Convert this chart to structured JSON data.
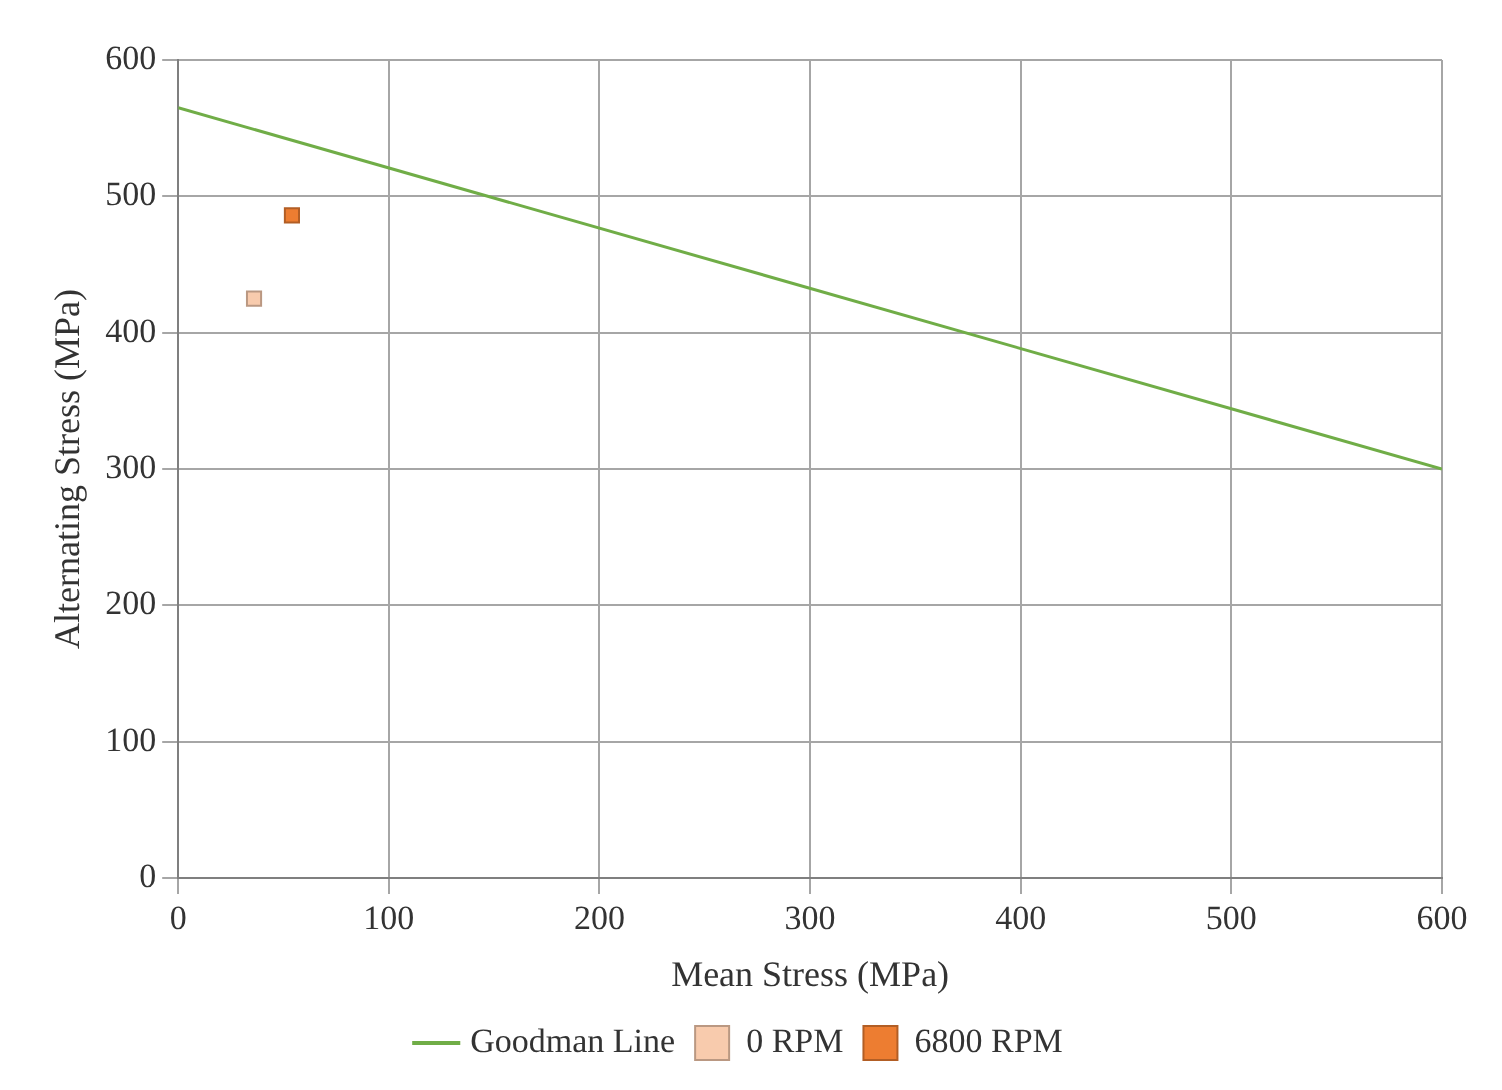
{
  "chart_data": {
    "type": "scatter",
    "xlabel": "Mean Stress (MPa)",
    "ylabel": "Alternating Stress (MPa)",
    "xlim": [
      0,
      600
    ],
    "xticks": [
      0,
      100,
      200,
      300,
      400,
      500,
      600
    ],
    "ylim": [
      0,
      600
    ],
    "yticks": [
      0,
      100,
      200,
      300,
      400,
      500,
      600
    ],
    "grid": true,
    "legend": "bottom",
    "marker": "square",
    "series": [
      {
        "name": "Goodman Line",
        "type": "line",
        "color": "#70ad47",
        "marker": "none",
        "x": [
          0,
          600
        ],
        "values": [
          565,
          300
        ]
      },
      {
        "name": "0 RPM",
        "color": "#f8cbad",
        "x": [
          36
        ],
        "values": [
          425
        ]
      },
      {
        "name": "6800 RPM",
        "color": "#ed7d31",
        "x": [
          54
        ],
        "values": [
          486
        ]
      }
    ]
  }
}
